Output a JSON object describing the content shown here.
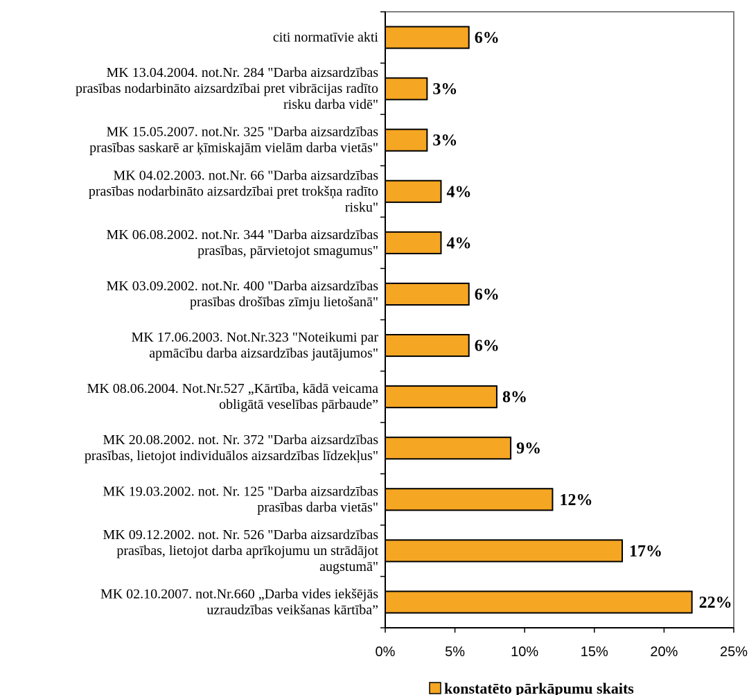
{
  "chart_data": {
    "type": "bar",
    "orientation": "horizontal",
    "title": "",
    "xlabel": "",
    "ylabel": "",
    "xlim": [
      0,
      25
    ],
    "x_ticks": [
      0,
      5,
      10,
      15,
      20,
      25
    ],
    "x_tick_labels": [
      "0%",
      "5%",
      "10%",
      "15%",
      "20%",
      "25%"
    ],
    "grid": false,
    "legend_position": "bottom-right",
    "bar_color": "#F5A623",
    "categories": [
      "citi normatīvie akti",
      "MK 13.04.2004. not.Nr. 284 \"Darba aizsardzības prasības nodarbināto aizsardzībai pret vibrācijas radīto risku darba vidē\"",
      "MK 15.05.2007. not.Nr. 325 \"Darba aizsardzības prasības saskarē ar ķīmiskajām vielām darba vietās\"",
      "MK 04.02.2003. not.Nr. 66 \"Darba aizsardzības prasības nodarbināto aizsardzībai pret trokšņa radīto risku\"",
      "MK 06.08.2002. not.Nr. 344 \"Darba aizsardzības prasības, pārvietojot smagumus\"",
      "MK 03.09.2002. not.Nr. 400 \"Darba aizsardzības prasības drošības zīmju lietošanā\"",
      "MK 17.06.2003. Not.Nr.323 \"Noteikumi par apmācību darba aizsardzības jautājumos\"",
      "MK 08.06.2004. Not.Nr.527 „Kārtība, kādā veicama obligātā veselības pārbaude”",
      "MK 20.08.2002. not. Nr. 372 \"Darba aizsardzības prasības, lietojot individuālos aizsardzības līdzekļus\"",
      "MK 19.03.2002. not. Nr. 125 \"Darba aizsardzības prasības darba vietās\"",
      "MK 09.12.2002. not. Nr. 526 \"Darba aizsardzības prasības, lietojot darba aprīkojumu un strādājot augstumā\"",
      "MK 02.10.2007. not.Nr.660 „Darba vides iekšējās uzraudzības veikšanas kārtība”"
    ],
    "category_lines": [
      [
        "citi normatīvie akti"
      ],
      [
        "MK 13.04.2004. not.Nr. 284 \"Darba aizsardzības",
        "prasības nodarbināto aizsardzībai pret vibrācijas radīto",
        "risku darba vidē\""
      ],
      [
        "MK 15.05.2007. not.Nr. 325 \"Darba aizsardzības",
        "prasības saskarē ar ķīmiskajām vielām darba vietās\""
      ],
      [
        "MK 04.02.2003. not.Nr. 66 \"Darba aizsardzības",
        "prasības nodarbināto aizsardzībai pret trokšņa radīto",
        "risku\""
      ],
      [
        "MK 06.08.2002. not.Nr. 344 \"Darba aizsardzības",
        "prasības, pārvietojot smagumus\""
      ],
      [
        "MK 03.09.2002. not.Nr. 400 \"Darba aizsardzības",
        "prasības drošības zīmju lietošanā\""
      ],
      [
        "MK 17.06.2003. Not.Nr.323 \"Noteikumi par",
        "apmācību darba aizsardzības jautājumos\""
      ],
      [
        "MK 08.06.2004. Not.Nr.527 „Kārtība, kādā veicama",
        "obligātā veselības pārbaude”"
      ],
      [
        "MK 20.08.2002. not. Nr. 372 \"Darba aizsardzības",
        "prasības, lietojot individuālos aizsardzības līdzekļus\""
      ],
      [
        "MK 19.03.2002. not. Nr. 125 \"Darba aizsardzības",
        "prasības darba vietās\""
      ],
      [
        "MK 09.12.2002. not. Nr. 526 \"Darba aizsardzības",
        "prasības, lietojot darba aprīkojumu un strādājot",
        "augstumā\""
      ],
      [
        "MK 02.10.2007. not.Nr.660 „Darba vides iekšējās",
        "uzraudzības veikšanas kārtība”"
      ]
    ],
    "series": [
      {
        "name": "konstatēto pārkāpumu skaits",
        "values": [
          6,
          3,
          3,
          4,
          4,
          6,
          6,
          8,
          9,
          12,
          17,
          22
        ],
        "labels": [
          "6%",
          "3%",
          "3%",
          "4%",
          "4%",
          "6%",
          "6%",
          "8%",
          "9%",
          "12%",
          "17%",
          "22%"
        ]
      }
    ]
  }
}
